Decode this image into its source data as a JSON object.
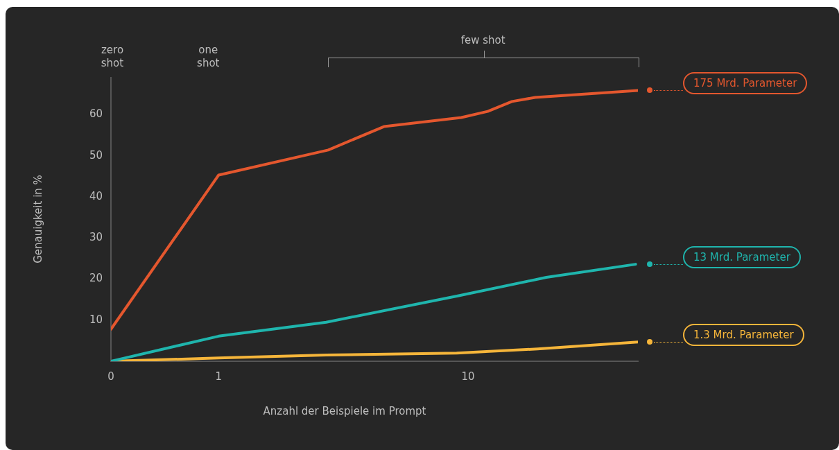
{
  "chart_data": {
    "type": "line",
    "xlabel": "Anzahl der Beispiele im Prompt",
    "ylabel": "Genauigkeit in %",
    "log": "x",
    "xlim": [
      0.37,
      48
    ],
    "xticks": [
      {
        "value": 0.37,
        "label": "0"
      },
      1,
      10
    ],
    "ylim": [
      0,
      69
    ],
    "yticks": [
      10,
      20,
      30,
      40,
      50,
      60
    ],
    "grid": false,
    "legend": "right",
    "marker": "none",
    "line_style": "solid",
    "series": [
      {
        "name": "175 Mrd. Parameter",
        "color": "#e4572e",
        "x": [
          0.37,
          1,
          2.75,
          4.6,
          9.4,
          12,
          15,
          18.6,
          48
        ],
        "values": [
          7.8,
          45.3,
          51.4,
          57.1,
          59.3,
          60.8,
          63.2,
          64.2,
          65.9
        ]
      },
      {
        "name": "13 Mrd. Parameter",
        "color": "#1fb5ad",
        "x": [
          0.37,
          1,
          2.7,
          9.1,
          20.6,
          47
        ],
        "values": [
          0,
          6.1,
          9.5,
          15.9,
          20.4,
          23.6
        ]
      },
      {
        "name": "1.3 Mrd. Parameter",
        "color": "#f5b53a",
        "x": [
          0.37,
          1,
          2.7,
          9,
          19,
          48
        ],
        "values": [
          0,
          0.8,
          1.5,
          2.0,
          3.0,
          4.7
        ]
      }
    ],
    "annotations": [
      "zero shot",
      "one shot",
      "few shot"
    ]
  }
}
